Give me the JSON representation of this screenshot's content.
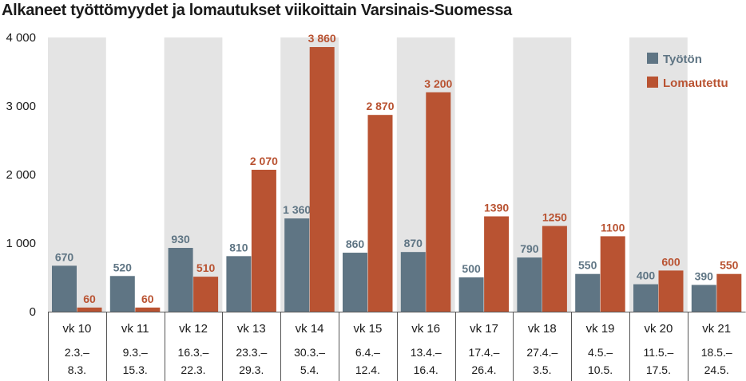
{
  "chart_data": {
    "type": "bar",
    "title": "Alkaneet työttömyydet ja lomautukset viikoittain Varsinais-Suomessa",
    "categories": [
      "vk 10",
      "vk 11",
      "vk 12",
      "vk 13",
      "vk 14",
      "vk 15",
      "vk 16",
      "vk 17",
      "vk 18",
      "vk 19",
      "vk 20",
      "vk 21"
    ],
    "date_ranges": [
      [
        "2.3.–",
        "8.3."
      ],
      [
        "9.3.–",
        "15.3."
      ],
      [
        "16.3.–",
        "22.3."
      ],
      [
        "23.3.–",
        "29.3."
      ],
      [
        "30.3.–",
        "5.4."
      ],
      [
        "6.4.–",
        "12.4."
      ],
      [
        "13.4.–",
        "16.4."
      ],
      [
        "17.4.–",
        "26.4."
      ],
      [
        "27.4.–",
        "3.5."
      ],
      [
        "4.5.–",
        "10.5."
      ],
      [
        "11.5.–",
        "17.5."
      ],
      [
        "18.5.–",
        "24.5."
      ]
    ],
    "series": [
      {
        "name": "Työtön",
        "color": "#5f7584",
        "values": [
          670,
          520,
          930,
          810,
          1360,
          860,
          870,
          500,
          790,
          550,
          400,
          390
        ],
        "labels": [
          "670",
          "520",
          "930",
          "810",
          "1 360",
          "860",
          "870",
          "500",
          "790",
          "550",
          "400",
          "390"
        ]
      },
      {
        "name": "Lomautettu",
        "color": "#b95332",
        "values": [
          60,
          60,
          510,
          2070,
          3860,
          2870,
          3200,
          1390,
          1250,
          1100,
          600,
          550
        ],
        "labels": [
          "60",
          "60",
          "510",
          "2 070",
          "3 860",
          "2 870",
          "3 200",
          "1390",
          "1250",
          "1100",
          "600",
          "550"
        ]
      }
    ],
    "ylim": [
      0,
      4000
    ],
    "yticks": [
      0,
      1000,
      2000,
      3000,
      4000
    ],
    "ytick_labels": [
      "0",
      "1 000",
      "2 000",
      "3 000",
      "4 000"
    ],
    "legend_position": "top-right",
    "colors": {
      "band": "#e4e4e4",
      "axis": "#555555"
    }
  }
}
